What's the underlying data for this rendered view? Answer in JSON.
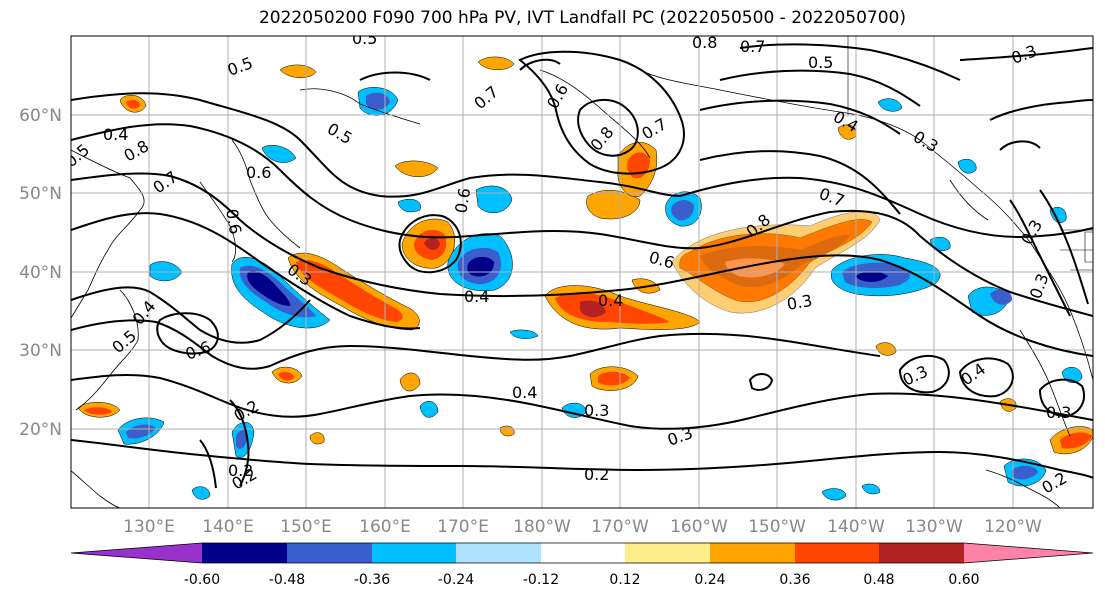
{
  "title": "2022050200 F090 700 hPa PV, IVT Landfall PC (2022050500 - 2022050700)",
  "lat_labels": [
    "60°N",
    "50°N",
    "40°N",
    "30°N",
    "20°N"
  ],
  "lon_labels": [
    "130°E",
    "140°E",
    "150°E",
    "160°E",
    "170°E",
    "180°W",
    "170°W",
    "160°W",
    "150°W",
    "140°W",
    "130°W",
    "120°W"
  ],
  "colorbar": {
    "colors": [
      "#9932cc",
      "#00008b",
      "#3a5fcd",
      "#00bfff",
      "#b0e2ff",
      "#ffffff",
      "#ffec8b",
      "#ffa500",
      "#ff4500",
      "#b22222",
      "#ff82ab"
    ],
    "labels": [
      "-0.60",
      "-0.48",
      "-0.36",
      "-0.24",
      "-0.12",
      "0.12",
      "0.24",
      "0.36",
      "0.48",
      "0.60"
    ]
  },
  "contour_labels": [
    "0.5",
    "0.4",
    "0.8",
    "0.7",
    "0.6",
    "0.6",
    "0.5",
    "0.6",
    "0.7",
    "0.6",
    "0.8",
    "0.7",
    "0.5",
    "0.7",
    "0.8",
    "0.5",
    "0.4",
    "0.3",
    "0.7",
    "0.8",
    "0.6",
    "0.4",
    "0.4",
    "0.3",
    "0.3",
    "0.5",
    "0.4",
    "0.6",
    "0.3",
    "0.2",
    "0.2",
    "0.2",
    "0.4",
    "0.3",
    "0.3",
    "0.2",
    "0.3",
    "0.4",
    "0.3",
    "0.2",
    "0.3",
    "0.3",
    "0.5"
  ]
}
